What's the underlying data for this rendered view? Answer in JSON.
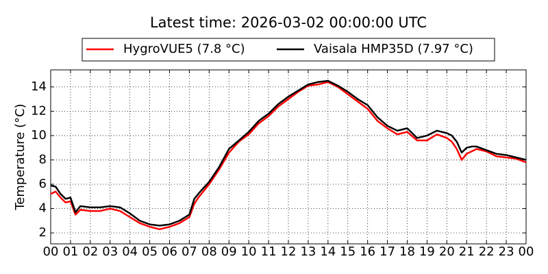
{
  "chart_data": {
    "type": "line",
    "title": "Latest time: 2026-03-02 00:00:00 UTC",
    "y_label": "Temperature (°C)",
    "x": [
      0,
      0.25,
      0.5,
      0.75,
      1,
      1.25,
      1.5,
      2,
      2.5,
      3,
      3.5,
      4,
      4.5,
      5,
      5.5,
      6,
      6.5,
      7,
      7.25,
      7.5,
      8,
      8.5,
      9,
      9.5,
      10,
      10.5,
      11,
      11.5,
      12,
      12.5,
      13,
      13.5,
      14,
      14.5,
      15,
      15.5,
      16,
      16.5,
      17,
      17.5,
      18,
      18.5,
      19,
      19.5,
      20,
      20.25,
      20.5,
      20.75,
      21,
      21.25,
      21.5,
      22,
      22.5,
      23,
      23.5,
      24
    ],
    "series": [
      {
        "name": "HygroVUE5 (7.8 °C)",
        "color": "#ff0000",
        "values": [
          5.2,
          5.4,
          4.9,
          4.5,
          4.6,
          3.5,
          3.9,
          3.8,
          3.8,
          4.0,
          3.8,
          3.3,
          2.8,
          2.5,
          2.3,
          2.5,
          2.8,
          3.3,
          4.4,
          5.0,
          6.0,
          7.2,
          8.6,
          9.5,
          10.1,
          11.0,
          11.6,
          12.4,
          13.0,
          13.6,
          14.1,
          14.2,
          14.4,
          14.0,
          13.4,
          12.8,
          12.2,
          11.2,
          10.6,
          10.1,
          10.3,
          9.6,
          9.6,
          10.1,
          9.8,
          9.5,
          8.9,
          8.0,
          8.5,
          8.7,
          8.9,
          8.7,
          8.3,
          8.2,
          8.1,
          7.8
        ]
      },
      {
        "name": "Vaisala HMP35D (7.97 °C)",
        "color": "#000000",
        "values": [
          5.9,
          5.8,
          5.2,
          4.8,
          4.9,
          3.7,
          4.2,
          4.1,
          4.1,
          4.2,
          4.1,
          3.6,
          3.0,
          2.7,
          2.6,
          2.7,
          3.0,
          3.5,
          4.8,
          5.3,
          6.2,
          7.4,
          8.9,
          9.6,
          10.3,
          11.2,
          11.8,
          12.6,
          13.2,
          13.7,
          14.2,
          14.4,
          14.5,
          14.1,
          13.6,
          13.0,
          12.5,
          11.5,
          10.8,
          10.4,
          10.6,
          9.8,
          10.0,
          10.4,
          10.2,
          10.0,
          9.5,
          8.6,
          9.0,
          9.1,
          9.1,
          8.8,
          8.5,
          8.4,
          8.2,
          8.0
        ]
      }
    ],
    "xlim": [
      0,
      24
    ],
    "xticks": [
      {
        "value": 0,
        "label": "00"
      },
      {
        "value": 1,
        "label": "01"
      },
      {
        "value": 2,
        "label": "02"
      },
      {
        "value": 3,
        "label": "03"
      },
      {
        "value": 4,
        "label": "04"
      },
      {
        "value": 5,
        "label": "05"
      },
      {
        "value": 6,
        "label": "06"
      },
      {
        "value": 7,
        "label": "07"
      },
      {
        "value": 8,
        "label": "08"
      },
      {
        "value": 9,
        "label": "09"
      },
      {
        "value": 10,
        "label": "10"
      },
      {
        "value": 11,
        "label": "11"
      },
      {
        "value": 12,
        "label": "12"
      },
      {
        "value": 13,
        "label": "13"
      },
      {
        "value": 14,
        "label": "14"
      },
      {
        "value": 15,
        "label": "15"
      },
      {
        "value": 16,
        "label": "16"
      },
      {
        "value": 17,
        "label": "17"
      },
      {
        "value": 18,
        "label": "18"
      },
      {
        "value": 19,
        "label": "19"
      },
      {
        "value": 20,
        "label": "20"
      },
      {
        "value": 21,
        "label": "21"
      },
      {
        "value": 22,
        "label": "22"
      },
      {
        "value": 23,
        "label": "23"
      },
      {
        "value": 24,
        "label": "00"
      }
    ],
    "ylim": [
      1.1,
      15.4
    ],
    "yticks": [
      2,
      4,
      6,
      8,
      10,
      12,
      14
    ],
    "grid": true
  }
}
